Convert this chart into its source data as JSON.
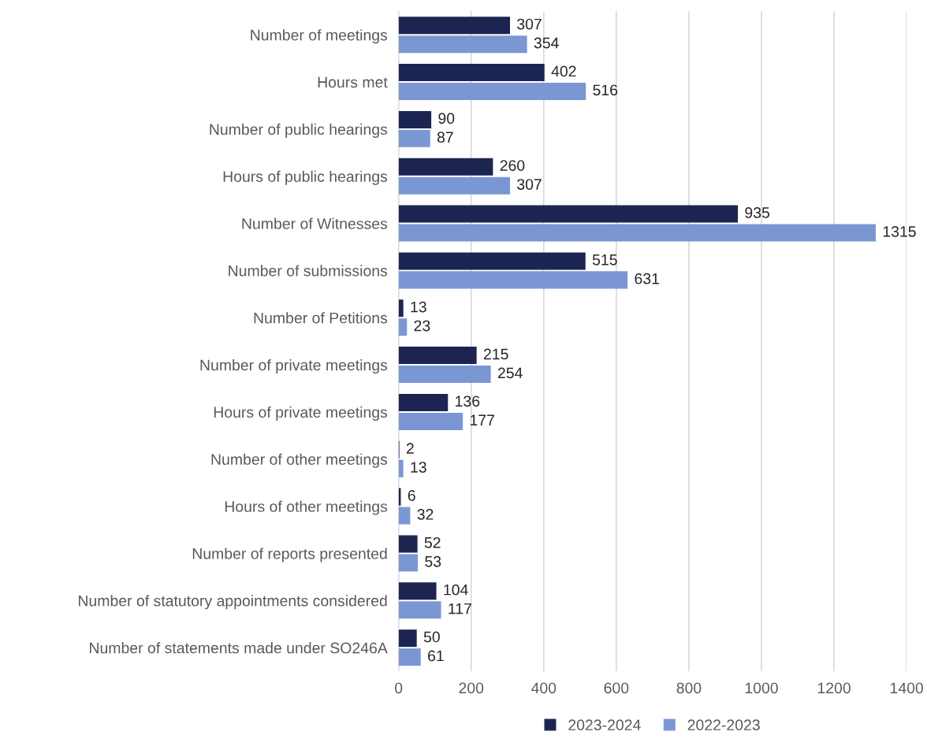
{
  "chart_data": {
    "type": "bar",
    "orientation": "horizontal",
    "categories": [
      "Number of meetings",
      "Hours met",
      "Number of public hearings",
      "Hours of public hearings",
      "Number of Witnesses",
      "Number of submissions",
      "Number of Petitions",
      "Number of private meetings",
      "Hours of private meetings",
      "Number of other meetings",
      "Hours of other meetings",
      "Number of reports presented",
      "Number of statutory appointments considered",
      "Number of statements made under SO246A"
    ],
    "series": [
      {
        "name": "2023-2024",
        "color": "#1c2552",
        "values": [
          307,
          402,
          90,
          260,
          935,
          515,
          13,
          215,
          136,
          2,
          6,
          52,
          104,
          50
        ]
      },
      {
        "name": "2022-2023",
        "color": "#7b97d3",
        "values": [
          354,
          516,
          87,
          307,
          1315,
          631,
          23,
          254,
          177,
          13,
          32,
          53,
          117,
          61
        ]
      }
    ],
    "xlim": [
      0,
      1400
    ],
    "xticks": [
      0,
      200,
      400,
      600,
      800,
      1000,
      1200,
      1400
    ],
    "grid": "x",
    "legend": "bottom",
    "data_labels": true
  }
}
